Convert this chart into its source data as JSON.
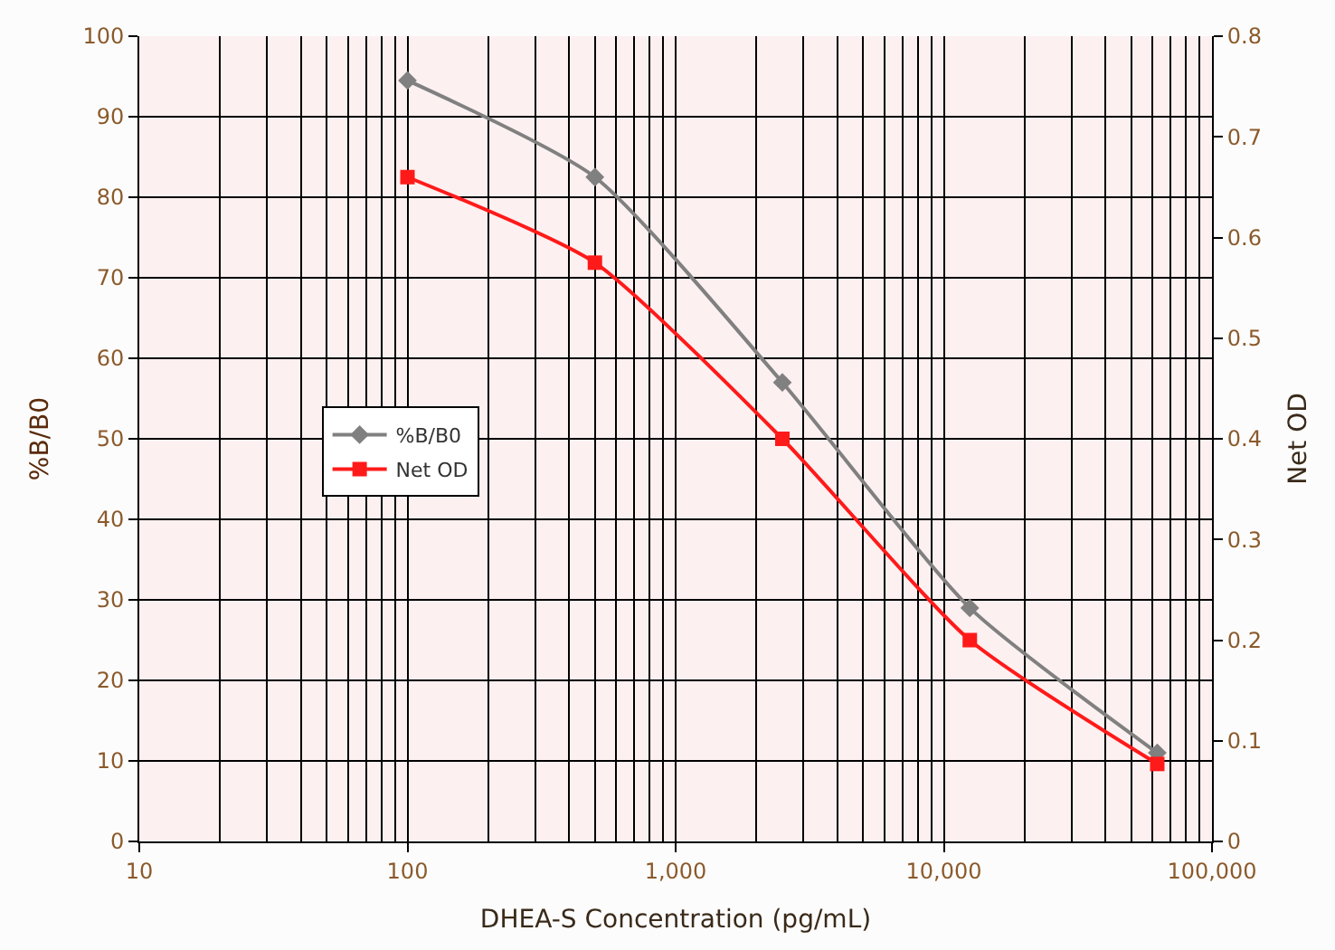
{
  "chart_data": {
    "type": "line",
    "xlabel": "DHEA-S Concentration (pg/mL)",
    "ylabel": "%B/B0",
    "y2label": "Net OD",
    "log": "x",
    "grid": true,
    "legend": "center left",
    "xlim": [
      10,
      100000
    ],
    "xticks": [
      10,
      100,
      {
        "value": 1000,
        "label": "1,000"
      },
      {
        "value": 10000,
        "label": "10,000"
      },
      {
        "value": 100000,
        "label": "100,000"
      }
    ],
    "ylim": [
      0,
      100
    ],
    "yticks": [
      0,
      10,
      20,
      30,
      40,
      50,
      60,
      70,
      80,
      90,
      100
    ],
    "y2lim": [
      0,
      0.8
    ],
    "y2ticks": [
      0,
      0.1,
      0.2,
      0.3,
      0.4,
      0.5,
      0.6,
      0.7,
      0.8
    ],
    "x": [
      100,
      500,
      2500,
      12500,
      62500
    ],
    "series": [
      {
        "name": "%B/B0",
        "color": "#808080",
        "marker": "diamond",
        "values": [
          94.5,
          82.5,
          57,
          29,
          11
        ]
      },
      {
        "name": "Net OD",
        "color": "#ff1a1a",
        "marker": "square",
        "axis": "y2",
        "values": [
          0.66,
          0.575,
          0.4,
          0.2,
          0.077
        ]
      }
    ]
  }
}
